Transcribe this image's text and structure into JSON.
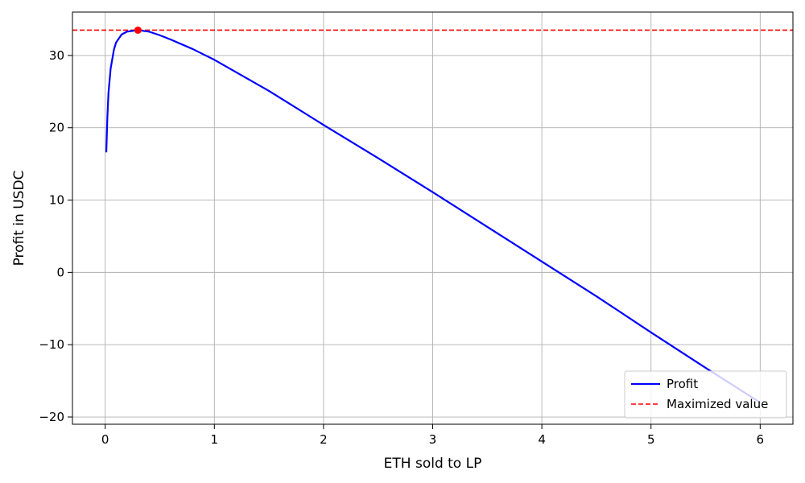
{
  "chart_data": {
    "type": "line",
    "xlabel": "ETH sold to LP",
    "ylabel": "Profit in USDC",
    "xlim": [
      -0.3,
      6.3
    ],
    "ylim": [
      -21,
      36
    ],
    "x_ticks": [
      0,
      1,
      2,
      3,
      4,
      5,
      6
    ],
    "y_ticks": [
      -20,
      -10,
      0,
      10,
      20,
      30
    ],
    "grid": true,
    "legend_position": "lower-right",
    "series": [
      {
        "name": "Profit",
        "color": "#0000ff",
        "style": "solid",
        "x": [
          0.01,
          0.02,
          0.03,
          0.05,
          0.08,
          0.1,
          0.15,
          0.2,
          0.25,
          0.3,
          0.4,
          0.5,
          0.6,
          0.8,
          1.0,
          1.5,
          2.0,
          2.5,
          3.0,
          3.5,
          4.0,
          4.5,
          5.0,
          5.5,
          6.0
        ],
        "y": [
          16.6,
          21.5,
          24.8,
          28.2,
          30.8,
          31.8,
          32.9,
          33.3,
          33.4,
          33.5,
          33.3,
          32.8,
          32.2,
          30.9,
          29.4,
          25.1,
          20.4,
          15.8,
          11.1,
          6.3,
          1.5,
          -3.3,
          -8.3,
          -13.2,
          -18.0
        ]
      },
      {
        "name": "Maximized value",
        "color": "#ff0000",
        "style": "dashed",
        "y": 33.5
      }
    ],
    "max_point": {
      "x": 0.3,
      "y": 33.5,
      "color": "#ff0000"
    }
  }
}
